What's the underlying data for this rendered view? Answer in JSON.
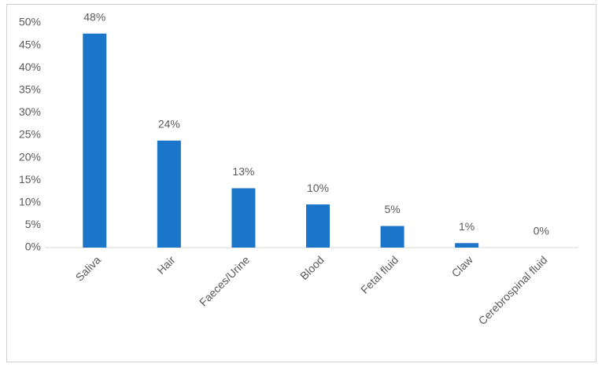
{
  "chart_data": {
    "type": "bar",
    "categories": [
      "Saliva",
      "Hair",
      "Faeces/Urine",
      "Blood",
      "Fetal fluid",
      "Claw",
      "Cerebrospinal fluid"
    ],
    "values": [
      47.6,
      23.8,
      13.2,
      9.6,
      4.8,
      1.0,
      0
    ],
    "value_labels": [
      "48%",
      "24%",
      "13%",
      "10%",
      "5%",
      "1%",
      "0%"
    ],
    "color": "#1b75c9",
    "ylim": [
      0,
      50
    ],
    "yticks": [
      {
        "value": 0,
        "label": "0%"
      },
      {
        "value": 5,
        "label": "5%"
      },
      {
        "value": 10,
        "label": "10%"
      },
      {
        "value": 15,
        "label": "15%"
      },
      {
        "value": 20,
        "label": "20%"
      },
      {
        "value": 25,
        "label": "25%"
      },
      {
        "value": 30,
        "label": "30%"
      },
      {
        "value": 35,
        "label": "35%"
      },
      {
        "value": 40,
        "label": "40%"
      },
      {
        "value": 45,
        "label": "45%"
      },
      {
        "value": 50,
        "label": "50%"
      }
    ],
    "grid": false
  }
}
